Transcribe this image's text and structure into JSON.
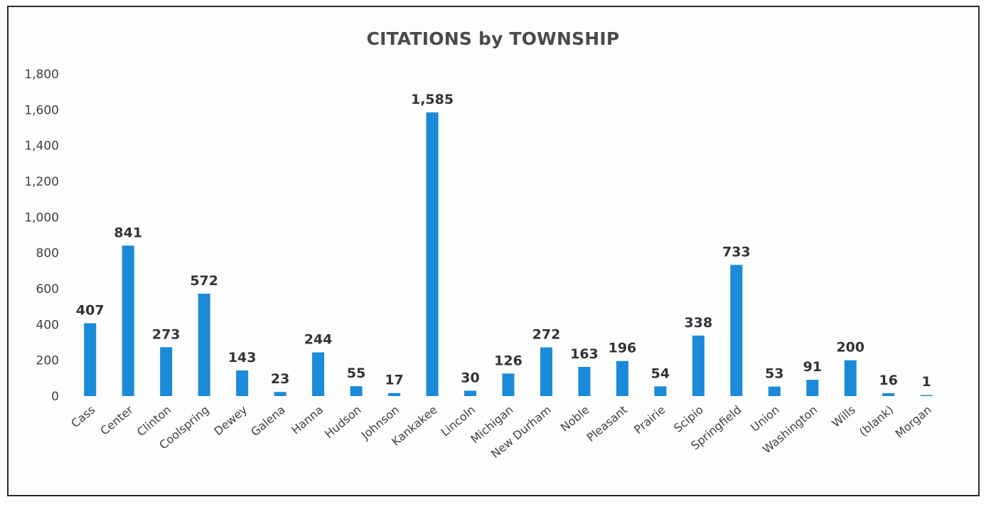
{
  "chart_data": {
    "type": "bar",
    "title": "CITATIONS by TOWNSHIP",
    "xlabel": "",
    "ylabel": "",
    "ylim": [
      0,
      1800
    ],
    "yticks": [
      "0",
      "200",
      "400",
      "600",
      "800",
      "1,000",
      "1,200",
      "1,400",
      "1,600",
      "1,800"
    ],
    "grid": false,
    "legend": "none",
    "bar_color": "#1b8ad8",
    "categories": [
      "Cass",
      "Center",
      "Clinton",
      "Coolspring",
      "Dewey",
      "Galena",
      "Hanna",
      "Hudson",
      "Johnson",
      "Kankakee",
      "Lincoln",
      "Michigan",
      "New Durham",
      "Noble",
      "Pleasant",
      "Prairie",
      "Scipio",
      "Springfield",
      "Union",
      "Washington",
      "Wills",
      "(blank)",
      "Morgan"
    ],
    "values": [
      407,
      841,
      273,
      572,
      143,
      23,
      244,
      55,
      17,
      1585,
      30,
      126,
      272,
      163,
      196,
      54,
      338,
      733,
      53,
      91,
      200,
      16,
      1
    ],
    "data_labels": [
      "407",
      "841",
      "273",
      "572",
      "143",
      "23",
      "244",
      "55",
      "17",
      "1,585",
      "30",
      "126",
      "272",
      "163",
      "196",
      "54",
      "338",
      "733",
      "53",
      "91",
      "200",
      "16",
      "1"
    ]
  }
}
